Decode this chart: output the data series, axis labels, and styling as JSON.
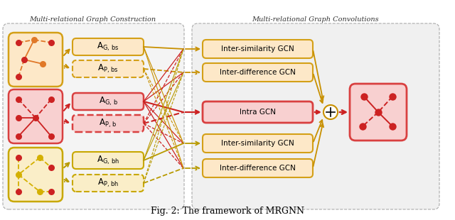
{
  "title": "Fig. 2: The framework of MRGNN",
  "left_section_title": "Multi-relational Graph Construction",
  "right_section_title": "Multi-relational Graph Convolutions",
  "colors": {
    "orange_border": "#D4A017",
    "orange_bg": "#FDE8C8",
    "red_border": "#D94040",
    "red_bg": "#F8D0D0",
    "yellow_border": "#C8A800",
    "yellow_bg": "#FAEEC8",
    "section_bg": "#EFEFEF",
    "section_edge": "#AAAAAA",
    "node_red": "#CC2222",
    "node_orange": "#E07828",
    "node_yellow": "#D4B000",
    "arrow_orange": "#C89000",
    "arrow_red": "#CC2222",
    "arrow_yellow": "#B89A00"
  },
  "fig_w": 6.4,
  "fig_h": 3.1,
  "dpi": 100
}
